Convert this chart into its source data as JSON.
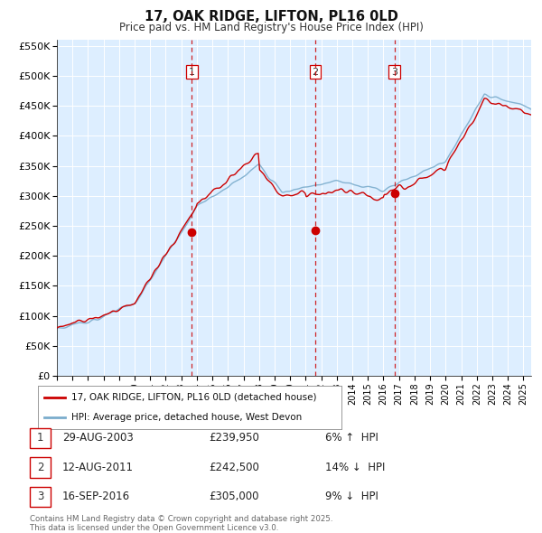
{
  "title": "17, OAK RIDGE, LIFTON, PL16 0LD",
  "subtitle": "Price paid vs. HM Land Registry's House Price Index (HPI)",
  "background_color": "#ffffff",
  "plot_bg_color": "#ddeeff",
  "grid_color": "#ffffff",
  "ylim": [
    0,
    560000
  ],
  "yticks": [
    0,
    50000,
    100000,
    150000,
    200000,
    250000,
    300000,
    350000,
    400000,
    450000,
    500000,
    550000
  ],
  "ytick_labels": [
    "£0",
    "£50K",
    "£100K",
    "£150K",
    "£200K",
    "£250K",
    "£300K",
    "£350K",
    "£400K",
    "£450K",
    "£500K",
    "£550K"
  ],
  "x_start_year": 1995,
  "x_end_year": 2025.5,
  "sale_color": "#cc0000",
  "hpi_color": "#7aaccc",
  "sale_label": "17, OAK RIDGE, LIFTON, PL16 0LD (detached house)",
  "hpi_label": "HPI: Average price, detached house, West Devon",
  "transactions": [
    {
      "num": 1,
      "date": "29-AUG-2003",
      "price": 239950,
      "year": 2003.67,
      "pct": "6%",
      "dir": "↑"
    },
    {
      "num": 2,
      "date": "12-AUG-2011",
      "price": 242500,
      "year": 2011.62,
      "pct": "14%",
      "dir": "↓"
    },
    {
      "num": 3,
      "date": "16-SEP-2016",
      "price": 305000,
      "year": 2016.71,
      "pct": "9%",
      "dir": "↓"
    }
  ],
  "footer_line1": "Contains HM Land Registry data © Crown copyright and database right 2025.",
  "footer_line2": "This data is licensed under the Open Government Licence v3.0."
}
